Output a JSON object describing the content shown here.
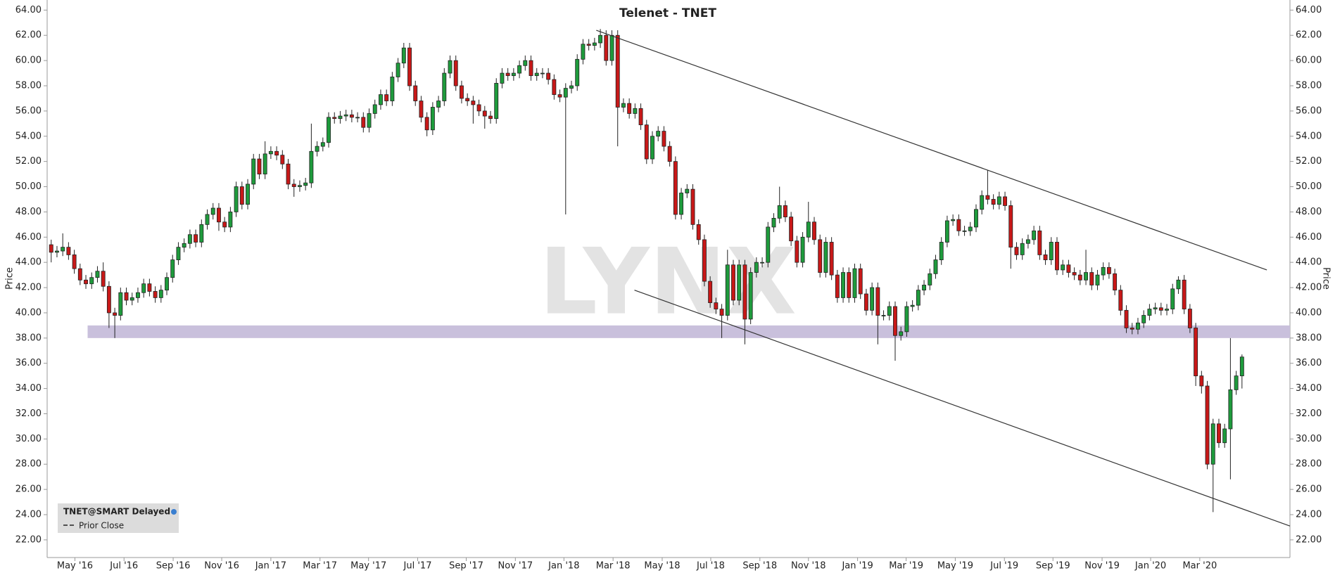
{
  "chart_data": {
    "type": "candlestick",
    "title": "Telenet - TNET",
    "ylabel": "Price",
    "watermark": "LYNX",
    "legend": {
      "title": "TNET@SMART Delayed",
      "items": [
        "Prior Close"
      ],
      "corner": "bottom-left"
    },
    "up_color": "#1e9b3c",
    "down_color": "#c81818",
    "grid": false,
    "xlim": [
      -0.7,
      214.3
    ],
    "ylim": [
      20.6,
      64.8
    ],
    "xticks": [
      {
        "value": 4.1,
        "label": "May '16"
      },
      {
        "value": 12.6,
        "label": "Jul '16"
      },
      {
        "value": 21.1,
        "label": "Sep '16"
      },
      {
        "value": 29.5,
        "label": "Nov '16"
      },
      {
        "value": 38.0,
        "label": "Jan '17"
      },
      {
        "value": 46.5,
        "label": "Mar '17"
      },
      {
        "value": 54.9,
        "label": "May '17"
      },
      {
        "value": 63.4,
        "label": "Jul '17"
      },
      {
        "value": 71.8,
        "label": "Sep '17"
      },
      {
        "value": 80.3,
        "label": "Nov '17"
      },
      {
        "value": 88.7,
        "label": "Jan '18"
      },
      {
        "value": 97.2,
        "label": "Mar '18"
      },
      {
        "value": 105.7,
        "label": "May '18"
      },
      {
        "value": 114.1,
        "label": "Jul '18"
      },
      {
        "value": 122.6,
        "label": "Sep '18"
      },
      {
        "value": 131.0,
        "label": "Nov '18"
      },
      {
        "value": 139.5,
        "label": "Jan '19"
      },
      {
        "value": 147.9,
        "label": "Mar '19"
      },
      {
        "value": 156.4,
        "label": "May '19"
      },
      {
        "value": 164.9,
        "label": "Jul '19"
      },
      {
        "value": 173.3,
        "label": "Sep '19"
      },
      {
        "value": 181.8,
        "label": "Nov '19"
      },
      {
        "value": 190.2,
        "label": "Jan '20"
      },
      {
        "value": 198.7,
        "label": "Mar '20"
      }
    ],
    "yticks": [
      {
        "value": 22,
        "label": "22.00"
      },
      {
        "value": 24,
        "label": "24.00"
      },
      {
        "value": 26,
        "label": "26.00"
      },
      {
        "value": 28,
        "label": "28.00"
      },
      {
        "value": 30,
        "label": "30.00"
      },
      {
        "value": 32,
        "label": "32.00"
      },
      {
        "value": 34,
        "label": "34.00"
      },
      {
        "value": 36,
        "label": "36.00"
      },
      {
        "value": 38,
        "label": "38.00"
      },
      {
        "value": 40,
        "label": "40.00"
      },
      {
        "value": 42,
        "label": "42.00"
      },
      {
        "value": 44,
        "label": "44.00"
      },
      {
        "value": 46,
        "label": "46.00"
      },
      {
        "value": 48,
        "label": "48.00"
      },
      {
        "value": 50,
        "label": "50.00"
      },
      {
        "value": 52,
        "label": "52.00"
      },
      {
        "value": 54,
        "label": "54.00"
      },
      {
        "value": 56,
        "label": "56.00"
      },
      {
        "value": 58,
        "label": "58.00"
      },
      {
        "value": 60,
        "label": "60.00"
      },
      {
        "value": 62,
        "label": "62.00"
      },
      {
        "value": 64,
        "label": "64.00"
      }
    ],
    "band": {
      "color": "#c9c0dc",
      "x": [
        6.3,
        214.3
      ],
      "y": [
        38,
        39
      ]
    },
    "trendlines": [
      {
        "x": [
          94.3,
          210.3
        ],
        "y": [
          62.4,
          43.4
        ]
      },
      {
        "x": [
          100.9,
          214.3
        ],
        "y": [
          41.8,
          23.1
        ]
      }
    ],
    "x": [
      0,
      1,
      2,
      3,
      4,
      5,
      6,
      7,
      8,
      9,
      10,
      11,
      12,
      13,
      14,
      15,
      16,
      17,
      18,
      19,
      20,
      21,
      22,
      23,
      24,
      25,
      26,
      27,
      28,
      29,
      30,
      31,
      32,
      33,
      34,
      35,
      36,
      37,
      38,
      39,
      40,
      41,
      42,
      43,
      44,
      45,
      46,
      47,
      48,
      49,
      50,
      51,
      52,
      53,
      54,
      55,
      56,
      57,
      58,
      59,
      60,
      61,
      62,
      63,
      64,
      65,
      66,
      67,
      68,
      69,
      70,
      71,
      72,
      73,
      74,
      75,
      76,
      77,
      78,
      79,
      80,
      81,
      82,
      83,
      84,
      85,
      86,
      87,
      88,
      89,
      90,
      91,
      92,
      93,
      94,
      95,
      96,
      97,
      98,
      99,
      100,
      101,
      102,
      103,
      104,
      105,
      106,
      107,
      108,
      109,
      110,
      111,
      112,
      113,
      114,
      115,
      116,
      117,
      118,
      119,
      120,
      121,
      122,
      123,
      124,
      125,
      126,
      127,
      128,
      129,
      130,
      131,
      132,
      133,
      134,
      135,
      136,
      137,
      138,
      139,
      140,
      141,
      142,
      143,
      144,
      145,
      146,
      147,
      148,
      149,
      150,
      151,
      152,
      153,
      154,
      155,
      156,
      157,
      158,
      159,
      160,
      161,
      162,
      163,
      164,
      165,
      166,
      167,
      168,
      169,
      170,
      171,
      172,
      173,
      174,
      175,
      176,
      177,
      178,
      179,
      180,
      181,
      182,
      183,
      184,
      185,
      186,
      187,
      188,
      189,
      190,
      191,
      192,
      193,
      194,
      195,
      196,
      197,
      198,
      199,
      200,
      201,
      202,
      203,
      204,
      205,
      206
    ],
    "open": [
      45.4,
      44.8,
      44.9,
      45.2,
      44.6,
      43.5,
      42.6,
      42.3,
      42.8,
      43.3,
      42.1,
      40.0,
      39.8,
      41.6,
      41.0,
      41.2,
      41.6,
      42.3,
      41.7,
      41.2,
      41.8,
      42.8,
      44.2,
      45.2,
      45.5,
      46.2,
      45.6,
      47.0,
      47.8,
      48.3,
      47.2,
      46.8,
      48.0,
      50.0,
      48.6,
      50.2,
      52.2,
      51.0,
      52.6,
      52.8,
      52.5,
      51.8,
      50.2,
      50.0,
      50.1,
      50.3,
      52.8,
      53.2,
      53.5,
      55.5,
      55.4,
      55.6,
      55.7,
      55.5,
      55.5,
      54.7,
      55.8,
      56.5,
      57.3,
      56.8,
      58.7,
      59.8,
      61.0,
      58.0,
      56.8,
      55.5,
      54.5,
      56.3,
      56.8,
      59.0,
      60.0,
      58.0,
      57.0,
      56.8,
      56.5,
      56.0,
      55.6,
      55.4,
      58.2,
      59.0,
      58.8,
      59.0,
      59.6,
      60.0,
      58.8,
      59.0,
      59.0,
      58.5,
      57.3,
      57.1,
      57.8,
      58.0,
      60.1,
      61.3,
      61.2,
      61.4,
      62.0,
      60.0,
      62.0,
      56.3,
      56.6,
      55.8,
      56.2,
      54.9,
      52.2,
      54.0,
      54.4,
      53.2,
      52.0,
      47.8,
      49.5,
      49.8,
      47.0,
      45.8,
      42.5,
      40.8,
      40.3,
      39.8,
      43.8,
      41.0,
      43.8,
      39.5,
      43.2,
      44.0,
      44.0,
      46.8,
      47.5,
      48.5,
      47.6,
      45.7,
      44.0,
      46.0,
      47.2,
      45.8,
      43.2,
      45.6,
      43.0,
      41.2,
      43.2,
      41.2,
      43.5,
      41.5,
      40.2,
      42.0,
      39.8,
      39.8,
      40.5,
      38.2,
      38.5,
      40.5,
      40.6,
      41.8,
      42.2,
      43.1,
      44.2,
      45.6,
      47.3,
      47.4,
      46.5,
      46.5,
      46.8,
      48.2,
      49.3,
      49.0,
      48.6,
      49.2,
      48.5,
      45.2,
      44.6,
      45.5,
      45.8,
      46.5,
      44.6,
      44.2,
      45.6,
      43.4,
      43.8,
      43.2,
      43.0,
      42.6,
      43.2,
      42.2,
      43.0,
      43.6,
      43.1,
      41.8,
      40.2,
      38.8,
      38.7,
      39.2,
      39.8,
      40.3,
      40.4,
      40.2,
      40.3,
      41.9,
      42.6,
      40.3,
      38.8,
      35.0,
      34.2,
      28.0,
      31.2,
      29.7,
      30.8,
      33.9,
      35.0
    ],
    "high": [
      45.8,
      45.3,
      46.3,
      45.6,
      45.0,
      43.9,
      43.0,
      43.2,
      43.7,
      44.0,
      42.5,
      40.4,
      42.0,
      42.0,
      41.6,
      42.0,
      42.7,
      42.7,
      42.1,
      42.2,
      43.2,
      44.6,
      45.6,
      45.9,
      46.6,
      46.6,
      47.4,
      48.2,
      48.7,
      48.7,
      47.6,
      48.4,
      50.4,
      50.4,
      50.6,
      52.6,
      52.6,
      53.6,
      53.2,
      53.2,
      52.9,
      52.2,
      50.6,
      50.5,
      50.7,
      55.0,
      53.6,
      53.9,
      55.9,
      55.9,
      56.0,
      56.1,
      56.1,
      55.9,
      55.9,
      56.2,
      56.9,
      57.7,
      57.7,
      59.1,
      60.2,
      61.4,
      61.4,
      58.4,
      57.2,
      55.9,
      56.7,
      57.2,
      59.4,
      60.4,
      60.4,
      58.4,
      57.4,
      57.2,
      56.9,
      56.4,
      56.0,
      58.6,
      59.4,
      59.4,
      59.4,
      60.0,
      60.4,
      60.4,
      59.4,
      59.4,
      59.4,
      58.9,
      57.7,
      58.2,
      58.4,
      60.5,
      61.7,
      61.7,
      61.8,
      62.5,
      62.4,
      62.4,
      62.4,
      57.0,
      57.0,
      56.6,
      56.6,
      55.3,
      54.4,
      54.8,
      54.8,
      53.6,
      52.4,
      49.9,
      50.2,
      50.2,
      47.4,
      46.2,
      42.9,
      41.2,
      40.7,
      45.0,
      44.2,
      44.2,
      44.2,
      43.6,
      44.4,
      44.4,
      47.2,
      47.9,
      50.0,
      48.9,
      48.0,
      46.1,
      46.4,
      48.8,
      47.6,
      46.2,
      46.0,
      46.0,
      43.4,
      43.6,
      43.6,
      43.9,
      43.9,
      41.9,
      42.4,
      42.4,
      40.2,
      40.9,
      40.9,
      38.9,
      40.9,
      41.0,
      42.2,
      42.6,
      43.5,
      44.6,
      46.0,
      47.7,
      47.8,
      47.8,
      46.9,
      47.2,
      48.6,
      49.7,
      51.3,
      49.4,
      49.6,
      49.6,
      48.9,
      45.6,
      45.9,
      46.2,
      46.9,
      46.9,
      45.0,
      46.0,
      46.0,
      44.2,
      44.2,
      43.6,
      43.4,
      45.0,
      43.6,
      43.4,
      44.0,
      44.0,
      43.5,
      42.2,
      40.6,
      39.2,
      39.6,
      40.2,
      40.7,
      40.8,
      40.8,
      40.7,
      42.3,
      42.9,
      43.0,
      40.7,
      39.2,
      35.4,
      34.6,
      31.6,
      31.6,
      31.2,
      38.0,
      35.4,
      36.7
    ],
    "low": [
      44.0,
      44.4,
      44.5,
      44.2,
      43.1,
      42.2,
      41.9,
      41.9,
      42.4,
      41.7,
      38.8,
      38.0,
      39.4,
      40.6,
      40.6,
      40.8,
      41.2,
      41.3,
      40.8,
      40.8,
      41.4,
      42.4,
      43.8,
      44.8,
      45.1,
      45.2,
      45.2,
      46.6,
      47.4,
      46.5,
      46.4,
      46.4,
      47.6,
      48.2,
      48.2,
      49.8,
      50.6,
      50.6,
      52.2,
      52.1,
      51.4,
      49.8,
      49.2,
      49.6,
      49.7,
      49.9,
      52.4,
      52.8,
      53.1,
      55.0,
      55.0,
      55.2,
      55.1,
      55.1,
      54.3,
      54.3,
      55.4,
      56.1,
      56.4,
      56.4,
      58.3,
      59.4,
      57.6,
      56.4,
      55.1,
      54.0,
      54.1,
      55.9,
      56.4,
      58.6,
      57.6,
      56.6,
      56.4,
      55.0,
      55.6,
      54.6,
      55.0,
      55.0,
      57.8,
      58.4,
      58.4,
      58.6,
      59.2,
      58.4,
      58.4,
      58.6,
      58.1,
      56.9,
      56.7,
      47.8,
      57.4,
      57.6,
      59.7,
      60.8,
      60.8,
      61.0,
      59.6,
      59.6,
      53.2,
      55.9,
      55.4,
      55.4,
      54.5,
      51.8,
      51.8,
      53.6,
      52.8,
      51.6,
      47.4,
      47.4,
      49.1,
      46.6,
      45.4,
      42.1,
      40.4,
      39.9,
      38.0,
      39.4,
      40.6,
      40.6,
      37.5,
      39.1,
      42.8,
      43.6,
      43.6,
      46.4,
      47.1,
      47.2,
      45.3,
      43.6,
      43.6,
      45.6,
      45.4,
      42.8,
      42.8,
      42.6,
      40.8,
      40.8,
      40.8,
      40.8,
      41.1,
      39.8,
      39.8,
      37.5,
      39.4,
      39.4,
      36.2,
      37.8,
      38.1,
      40.1,
      40.2,
      41.4,
      41.8,
      42.7,
      43.8,
      45.2,
      46.9,
      46.1,
      46.1,
      46.1,
      46.4,
      47.8,
      48.6,
      48.2,
      48.2,
      48.1,
      43.5,
      44.2,
      44.2,
      45.1,
      45.4,
      44.2,
      43.8,
      43.8,
      43.0,
      43.0,
      42.8,
      42.6,
      42.2,
      42.2,
      41.8,
      41.8,
      42.6,
      42.7,
      41.4,
      39.8,
      38.4,
      38.3,
      38.3,
      38.8,
      39.4,
      39.9,
      39.8,
      39.8,
      39.9,
      41.5,
      39.9,
      38.4,
      34.2,
      33.6,
      27.6,
      24.2,
      29.3,
      29.3,
      26.8,
      33.5,
      34.0
    ],
    "close": [
      44.8,
      44.9,
      45.2,
      44.6,
      43.5,
      42.6,
      42.3,
      42.8,
      43.3,
      42.1,
      40.0,
      39.8,
      41.6,
      41.0,
      41.2,
      41.6,
      42.3,
      41.7,
      41.2,
      41.8,
      42.8,
      44.2,
      45.2,
      45.5,
      46.2,
      45.6,
      47.0,
      47.8,
      48.3,
      47.2,
      46.8,
      48.0,
      50.0,
      48.6,
      50.2,
      52.2,
      51.0,
      52.6,
      52.8,
      52.5,
      51.8,
      50.2,
      50.0,
      50.1,
      50.3,
      52.8,
      53.2,
      53.5,
      55.5,
      55.4,
      55.6,
      55.7,
      55.5,
      55.5,
      54.7,
      55.8,
      56.5,
      57.3,
      56.8,
      58.7,
      59.8,
      61.0,
      58.0,
      56.8,
      55.5,
      54.5,
      56.3,
      56.8,
      59.0,
      60.0,
      58.0,
      57.0,
      56.8,
      56.5,
      56.0,
      55.6,
      55.4,
      58.2,
      59.0,
      58.8,
      59.0,
      59.6,
      60.0,
      58.8,
      59.0,
      59.0,
      58.5,
      57.3,
      57.1,
      57.8,
      58.0,
      60.1,
      61.3,
      61.2,
      61.4,
      62.0,
      60.0,
      62.0,
      56.3,
      56.6,
      55.8,
      56.2,
      54.9,
      52.2,
      54.0,
      54.4,
      53.2,
      52.0,
      47.8,
      49.5,
      49.8,
      47.0,
      45.8,
      42.5,
      40.8,
      40.3,
      39.8,
      43.8,
      41.0,
      43.8,
      39.5,
      43.2,
      44.0,
      44.0,
      46.8,
      47.5,
      48.5,
      47.6,
      45.7,
      44.0,
      46.0,
      47.2,
      45.8,
      43.2,
      45.6,
      43.0,
      41.2,
      43.2,
      41.2,
      43.5,
      41.5,
      40.2,
      42.0,
      39.8,
      39.8,
      40.5,
      38.2,
      38.5,
      40.5,
      40.6,
      41.8,
      42.2,
      43.1,
      44.2,
      45.6,
      47.3,
      47.4,
      46.5,
      46.5,
      46.8,
      48.2,
      49.3,
      49.0,
      48.6,
      49.2,
      48.5,
      45.2,
      44.6,
      45.5,
      45.8,
      46.5,
      44.6,
      44.2,
      45.6,
      43.4,
      43.8,
      43.2,
      43.0,
      42.6,
      43.2,
      42.2,
      43.0,
      43.6,
      43.1,
      41.8,
      40.2,
      38.8,
      38.7,
      39.2,
      39.8,
      40.3,
      40.4,
      40.2,
      40.3,
      41.9,
      42.6,
      40.3,
      38.8,
      35.0,
      34.2,
      28.0,
      31.2,
      29.7,
      30.8,
      33.9,
      35.0,
      36.5
    ]
  }
}
